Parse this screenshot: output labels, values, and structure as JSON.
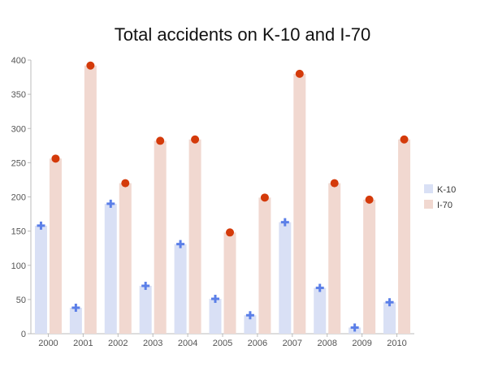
{
  "chart_data": {
    "type": "bar",
    "title": "Total accidents on K-10 and I-70",
    "xlabel": "",
    "ylabel": "",
    "categories": [
      "2000",
      "2001",
      "2002",
      "2003",
      "2004",
      "2005",
      "2006",
      "2007",
      "2008",
      "2009",
      "2010"
    ],
    "series": [
      {
        "name": "K-10",
        "values": [
          158,
          38,
          190,
          70,
          131,
          51,
          27,
          163,
          67,
          9,
          46
        ],
        "bar_color": "#d9e0f5",
        "marker": "plus",
        "marker_color": "#5b7fe8"
      },
      {
        "name": "I-70",
        "values": [
          256,
          392,
          220,
          282,
          284,
          148,
          199,
          380,
          220,
          196,
          284
        ],
        "bar_color": "#f1d8d0",
        "marker": "circle",
        "marker_color": "#d43a0a"
      }
    ],
    "ylim": [
      0,
      400
    ],
    "yticks": [
      0,
      50,
      100,
      150,
      200,
      250,
      300,
      350,
      400
    ],
    "grid": false,
    "legend_position": "right",
    "axis_color": "#bbbbbb",
    "tick_label_color": "#555555"
  }
}
